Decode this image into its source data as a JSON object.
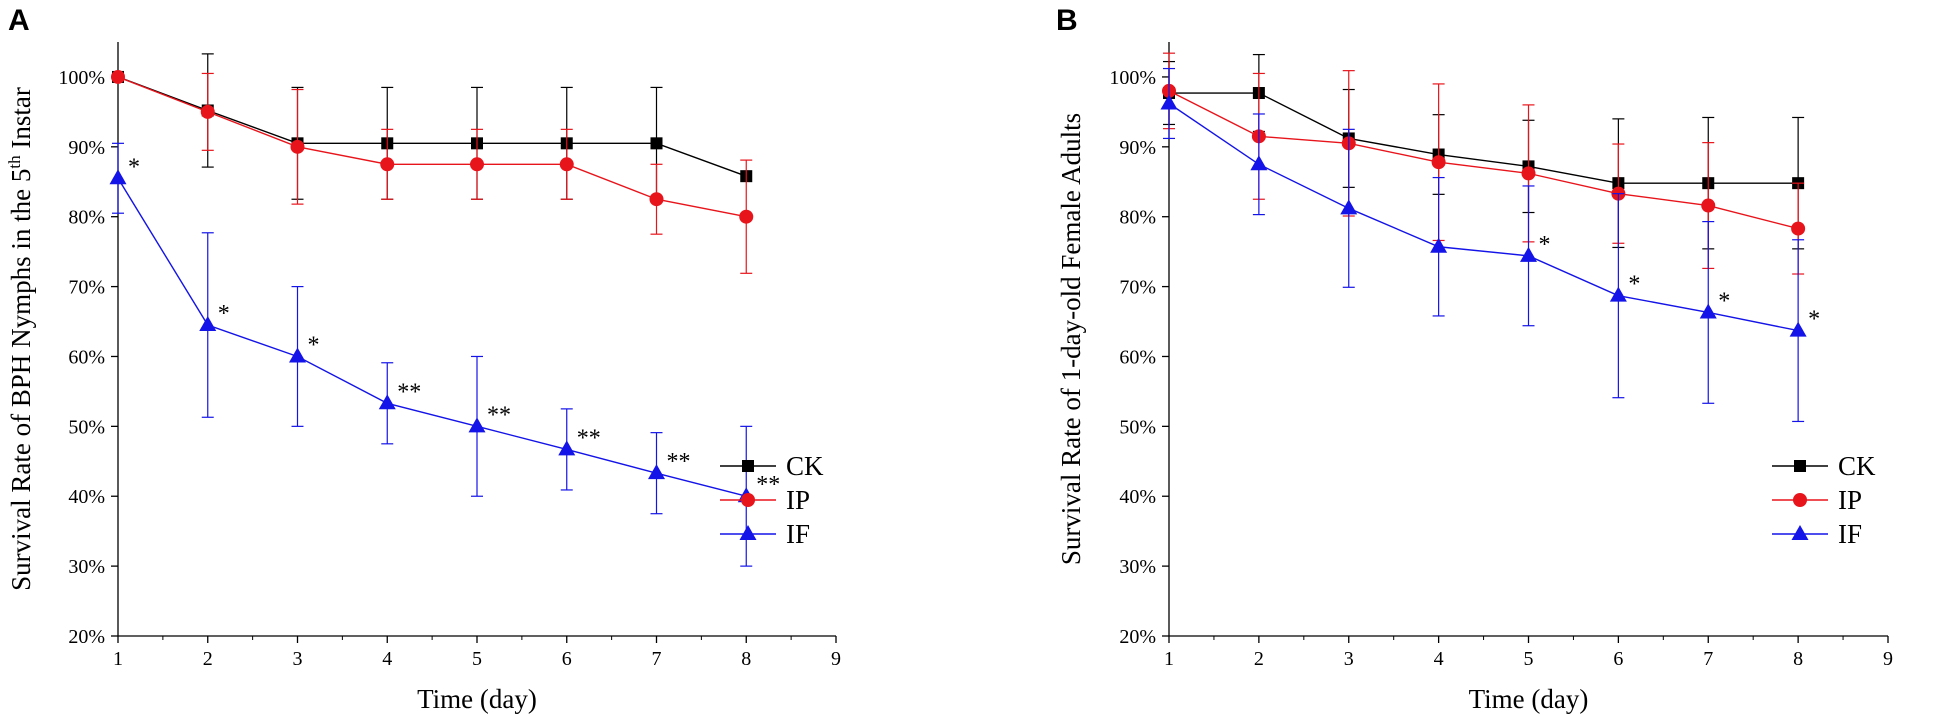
{
  "chart_data": [
    {
      "type": "line",
      "panel_label": "A",
      "title": "",
      "xlabel": "Time (day)",
      "ylabel_main": "Survival Rate of BPH Nymphs in the 5",
      "ylabel_sup": "th",
      "ylabel_end": " Instar",
      "xlim": [
        1,
        9
      ],
      "ylim": [
        20,
        105
      ],
      "xticks": [
        1,
        2,
        3,
        4,
        5,
        6,
        7,
        8,
        9
      ],
      "yticks": [
        20,
        30,
        40,
        50,
        60,
        70,
        80,
        90,
        100
      ],
      "ytick_labels": [
        "20%",
        "30%",
        "40%",
        "50%",
        "60%",
        "70%",
        "80%",
        "90%",
        "100%"
      ],
      "grid": false,
      "legend_position": "lower-right",
      "series": [
        {
          "name": "CK",
          "color": "#000000",
          "marker": "square",
          "x": [
            1,
            2,
            3,
            4,
            5,
            6,
            7,
            8
          ],
          "values": [
            100,
            95.2,
            90.5,
            90.5,
            90.5,
            90.5,
            90.5,
            85.8
          ],
          "err": [
            0,
            8.1,
            8.0,
            8.0,
            8.0,
            8.0,
            8.0,
            0
          ]
        },
        {
          "name": "IP",
          "color": "#e8141b",
          "marker": "circle",
          "x": [
            1,
            2,
            3,
            4,
            5,
            6,
            7,
            8
          ],
          "values": [
            100,
            95,
            90,
            87.5,
            87.5,
            87.5,
            82.5,
            80
          ],
          "err": [
            0,
            5.5,
            8.2,
            5.0,
            5.0,
            5.0,
            5.0,
            8.1
          ]
        },
        {
          "name": "IF",
          "color": "#1414e8",
          "marker": "triangle",
          "x": [
            1,
            2,
            3,
            4,
            5,
            6,
            7,
            8
          ],
          "values": [
            85.5,
            64.5,
            60,
            53.3,
            50,
            46.7,
            43.3,
            40
          ],
          "err": [
            5.0,
            13.2,
            10.0,
            5.8,
            10.0,
            5.8,
            5.8,
            10.0
          ]
        }
      ],
      "annotations": [
        {
          "x": 1,
          "y": 85.5,
          "text": "*"
        },
        {
          "x": 2,
          "y": 64.5,
          "text": "*"
        },
        {
          "x": 3,
          "y": 60,
          "text": "*"
        },
        {
          "x": 4,
          "y": 53.3,
          "text": "**"
        },
        {
          "x": 5,
          "y": 50,
          "text": "**"
        },
        {
          "x": 6,
          "y": 46.7,
          "text": "**"
        },
        {
          "x": 7,
          "y": 43.3,
          "text": "**"
        },
        {
          "x": 8,
          "y": 40,
          "text": "**"
        }
      ]
    },
    {
      "type": "line",
      "panel_label": "B",
      "title": "",
      "xlabel": "Time (day)",
      "ylabel_main": "Survival Rate of 1-day-old Female Adults",
      "ylabel_sup": "",
      "ylabel_end": "",
      "xlim": [
        1,
        9
      ],
      "ylim": [
        20,
        105
      ],
      "xticks": [
        1,
        2,
        3,
        4,
        5,
        6,
        7,
        8,
        9
      ],
      "yticks": [
        20,
        30,
        40,
        50,
        60,
        70,
        80,
        90,
        100
      ],
      "ytick_labels": [
        "20%",
        "30%",
        "40%",
        "50%",
        "60%",
        "70%",
        "80%",
        "90%",
        "100%"
      ],
      "grid": false,
      "legend_position": "lower-right",
      "series": [
        {
          "name": "CK",
          "color": "#000000",
          "marker": "square",
          "x": [
            1,
            2,
            3,
            4,
            5,
            6,
            7,
            8
          ],
          "values": [
            97.7,
            97.7,
            91.2,
            88.9,
            87.2,
            84.8,
            84.8,
            84.8
          ],
          "err": [
            4.5,
            5.5,
            7.0,
            5.7,
            6.6,
            9.2,
            9.4,
            9.4
          ]
        },
        {
          "name": "IP",
          "color": "#e8141b",
          "marker": "circle",
          "x": [
            1,
            2,
            3,
            4,
            5,
            6,
            7,
            8
          ],
          "values": [
            98,
            91.5,
            90.5,
            87.8,
            86.2,
            83.3,
            81.6,
            78.3
          ],
          "err": [
            5.4,
            9.0,
            10.4,
            11.2,
            9.8,
            7.1,
            9.0,
            6.5
          ]
        },
        {
          "name": "IF",
          "color": "#1414e8",
          "marker": "triangle",
          "x": [
            1,
            2,
            3,
            4,
            5,
            6,
            7,
            8
          ],
          "values": [
            96.2,
            87.5,
            81.2,
            75.7,
            74.4,
            68.7,
            66.3,
            63.7
          ],
          "err": [
            5.0,
            7.2,
            11.3,
            9.9,
            10.0,
            14.6,
            13.0,
            13.0
          ]
        }
      ],
      "annotations": [
        {
          "x": 5,
          "y": 74.4,
          "text": "*"
        },
        {
          "x": 6,
          "y": 68.7,
          "text": "*"
        },
        {
          "x": 7,
          "y": 66.3,
          "text": "*"
        },
        {
          "x": 8,
          "y": 63.7,
          "text": "*"
        }
      ]
    }
  ]
}
